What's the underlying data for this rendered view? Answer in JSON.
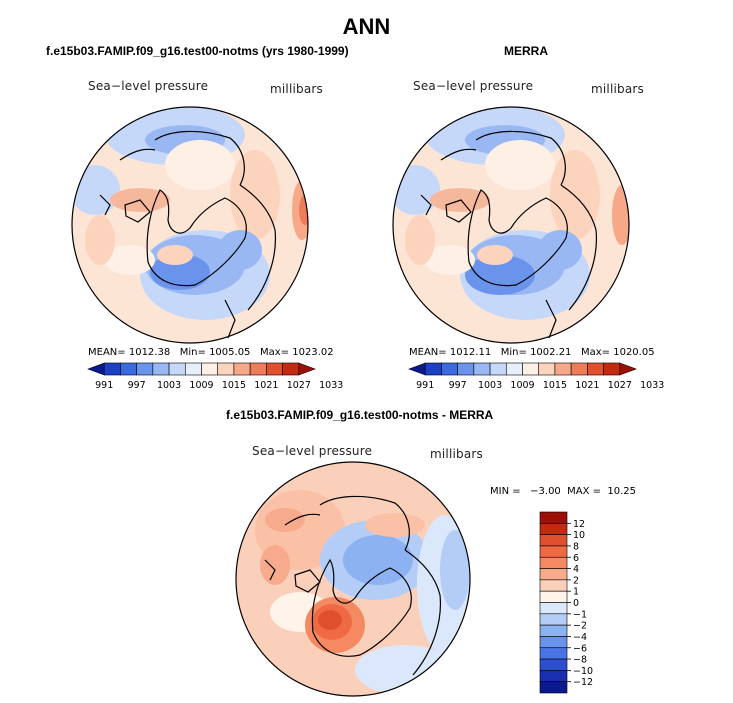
{
  "title": "ANN",
  "panels": [
    {
      "title": "f.e15b03.FAMIP.f09_g16.test00-notms (yrs 1980-1999)",
      "variable": "Sea−level pressure",
      "units": "millibars",
      "stats": {
        "mean_label": "MEAN=",
        "mean": "1012.38",
        "min_label": "Min=",
        "min": "1005.05",
        "max_label": "Max=",
        "max": "1023.02"
      }
    },
    {
      "title": "MERRA",
      "variable": "Sea−level pressure",
      "units": "millibars",
      "stats": {
        "mean_label": "MEAN=",
        "mean": "1012.11",
        "min_label": "Min=",
        "min": "1002.21",
        "max_label": "Max=",
        "max": "1020.05"
      }
    },
    {
      "title": "f.e15b03.FAMIP.f09_g16.test00-notms - MERRA",
      "variable": "Sea−level pressure",
      "units": "millibars",
      "stats": {
        "text": "MIN =   −3.00  MAX =  10.25"
      }
    }
  ],
  "chart_data": [
    {
      "type": "heatmap",
      "projection": "north-polar-stereographic",
      "title": "f.e15b03.FAMIP.f09_g16.test00-notms (yrs 1980-1999)",
      "variable": "Sea-level pressure",
      "units": "millibars",
      "mean": 1012.38,
      "min": 1005.05,
      "max": 1023.02,
      "colorbar_ticks": [
        "991",
        "997",
        "1003",
        "1009",
        "1015",
        "1021",
        "1027",
        "1033"
      ],
      "colorbar_colors": [
        "#0a1a8c",
        "#1c3fc4",
        "#3a6ae0",
        "#6a93ec",
        "#99b8f3",
        "#c6d8fa",
        "#e6effd",
        "#fff0e6",
        "#fcd3bc",
        "#f6a888",
        "#ef7c58",
        "#e0502e",
        "#c42a12",
        "#9c1008"
      ]
    },
    {
      "type": "heatmap",
      "projection": "north-polar-stereographic",
      "title": "MERRA",
      "variable": "Sea-level pressure",
      "units": "millibars",
      "mean": 1012.11,
      "min": 1002.21,
      "max": 1020.05,
      "colorbar_ticks": [
        "991",
        "997",
        "1003",
        "1009",
        "1015",
        "1021",
        "1027",
        "1033"
      ],
      "colorbar_colors": [
        "#0a1a8c",
        "#1c3fc4",
        "#3a6ae0",
        "#6a93ec",
        "#99b8f3",
        "#c6d8fa",
        "#e6effd",
        "#fff0e6",
        "#fcd3bc",
        "#f6a888",
        "#ef7c58",
        "#e0502e",
        "#c42a12",
        "#9c1008"
      ]
    },
    {
      "type": "heatmap",
      "projection": "north-polar-stereographic",
      "title": "f.e15b03.FAMIP.f09_g16.test00-notms - MERRA",
      "variable": "Sea-level pressure",
      "units": "millibars",
      "min": -3.0,
      "max": 10.25,
      "colorbar_ticks": [
        "12",
        "10",
        "8",
        "6",
        "4",
        "2",
        "1",
        "0",
        "−1",
        "−2",
        "−4",
        "−6",
        "−8",
        "−10",
        "−12"
      ],
      "colorbar_colors": [
        "#9c1008",
        "#c42a12",
        "#e0502e",
        "#ef6a44",
        "#f58a62",
        "#f7ab8c",
        "#fbd0bb",
        "#fff3ea",
        "#dbe8fb",
        "#b3cdf7",
        "#8db2f1",
        "#6a93ec",
        "#4a74e4",
        "#2c4fd2",
        "#1a2fb0",
        "#0a1a8c"
      ]
    }
  ]
}
